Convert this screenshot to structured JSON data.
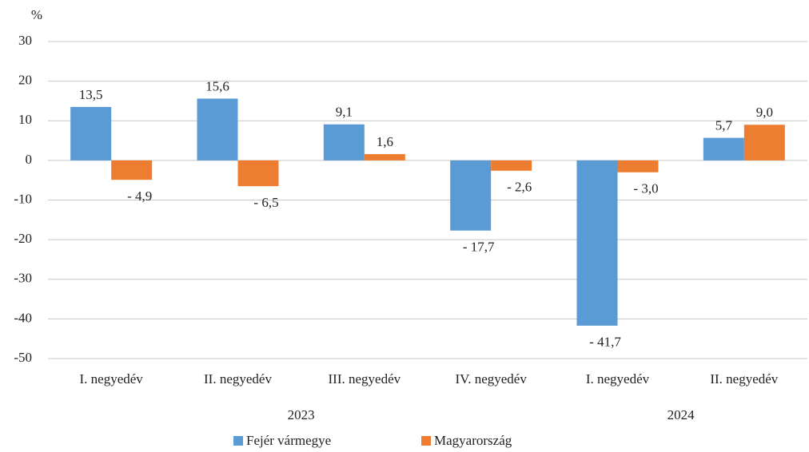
{
  "chart_data": {
    "type": "bar",
    "y_label": "%",
    "categories": [
      "I. negyedév",
      "II. negyedév",
      "III. negyedév",
      "IV. negyedév",
      "I. negyedév",
      "II. negyedév"
    ],
    "category_groups": [
      {
        "label": "2023",
        "span": 4
      },
      {
        "label": "2024",
        "span": 2
      }
    ],
    "series": [
      {
        "name": "Fejér vármegye",
        "color": "#5b9bd5",
        "values": [
          13.5,
          15.6,
          9.1,
          -17.7,
          -41.7,
          5.7
        ],
        "value_labels": [
          "13,5",
          "15,6",
          "9,1",
          "- 17,7",
          "- 41,7",
          "5,7"
        ]
      },
      {
        "name": "Magyarország",
        "color": "#ed7d31",
        "values": [
          -4.9,
          -6.5,
          1.6,
          -2.6,
          -3.0,
          9.0
        ],
        "value_labels": [
          "- 4,9",
          "- 6,5",
          "1,6",
          "- 2,6",
          "- 3,0",
          "9,0"
        ]
      }
    ],
    "ylim": [
      -50,
      30
    ],
    "yticks": [
      30,
      20,
      10,
      0,
      -10,
      -20,
      -30,
      -40,
      -50
    ],
    "grid": true,
    "legend": "bottom"
  }
}
